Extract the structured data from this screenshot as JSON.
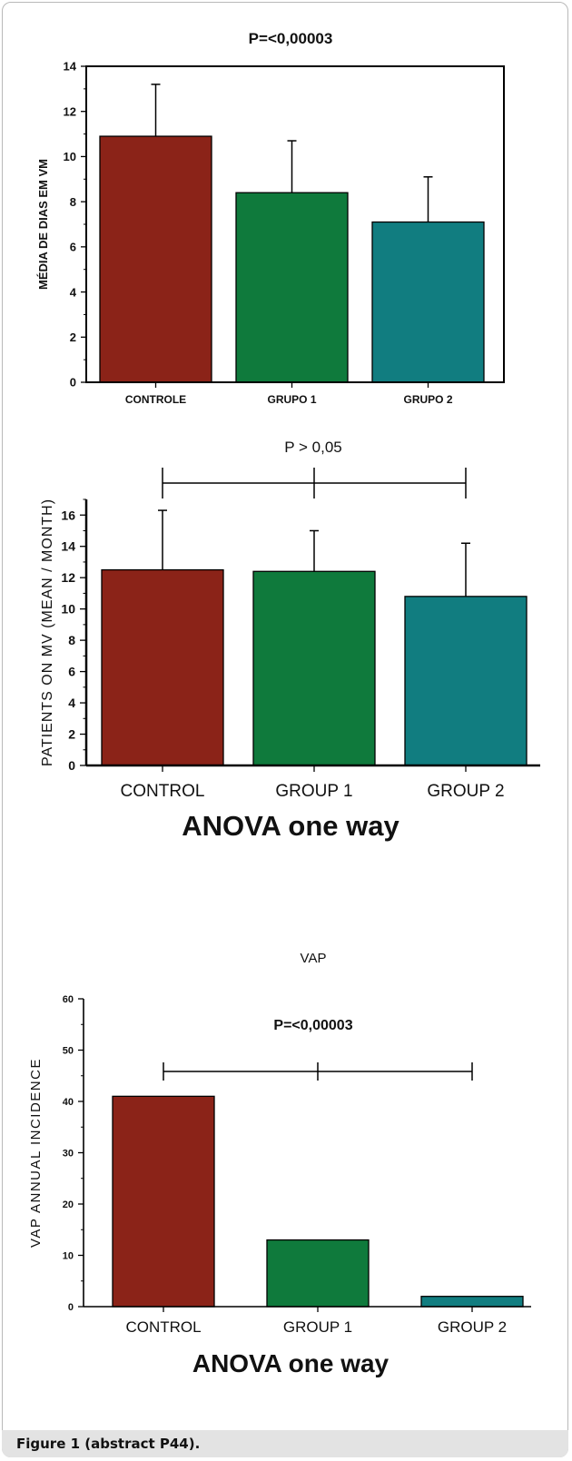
{
  "figure": {
    "caption": "Figure 1 (abstract P44).",
    "colors": {
      "control": "#8b2318",
      "group1": "#0f7a3c",
      "group2": "#117d80",
      "axis": "#000000",
      "text": "#111111"
    }
  },
  "chart_data": [
    {
      "type": "bar",
      "title": "P=<0,00003",
      "xlabel": "",
      "ylabel": "MÉDIA DE DIAS EM VM",
      "categories": [
        "CONTROLE",
        "GRUPO 1",
        "GRUPO 2"
      ],
      "values": [
        10.9,
        8.4,
        7.1
      ],
      "error_upper": [
        13.2,
        10.7,
        9.1
      ],
      "ylim": [
        0,
        14
      ],
      "yticks": [
        0,
        2,
        4,
        6,
        8,
        10,
        12,
        14
      ],
      "grid": false,
      "legend": "none"
    },
    {
      "type": "bar",
      "title": "P > 0,05",
      "xlabel": "ANOVA one way",
      "ylabel": "PATIENTS ON MV (MEAN / MONTH)",
      "categories": [
        "CONTROL",
        "GROUP 1",
        "GROUP 2"
      ],
      "values": [
        12.5,
        12.4,
        10.8
      ],
      "error_upper": [
        16.3,
        15.0,
        14.2
      ],
      "ylim": [
        0,
        17
      ],
      "yticks": [
        0,
        2,
        4,
        6,
        8,
        10,
        12,
        14,
        16
      ],
      "grid": false,
      "legend": "none"
    },
    {
      "type": "bar",
      "title": "VAP",
      "annotation": "P=<0,00003",
      "xlabel": "ANOVA one way",
      "ylabel": "VAP ANNUAL INCIDENCE",
      "categories": [
        "CONTROL",
        "GROUP 1",
        "GROUP 2"
      ],
      "values": [
        41,
        13,
        2
      ],
      "ylim": [
        0,
        60
      ],
      "yticks": [
        0,
        10,
        20,
        30,
        40,
        50,
        60
      ],
      "grid": false,
      "legend": "none"
    }
  ]
}
